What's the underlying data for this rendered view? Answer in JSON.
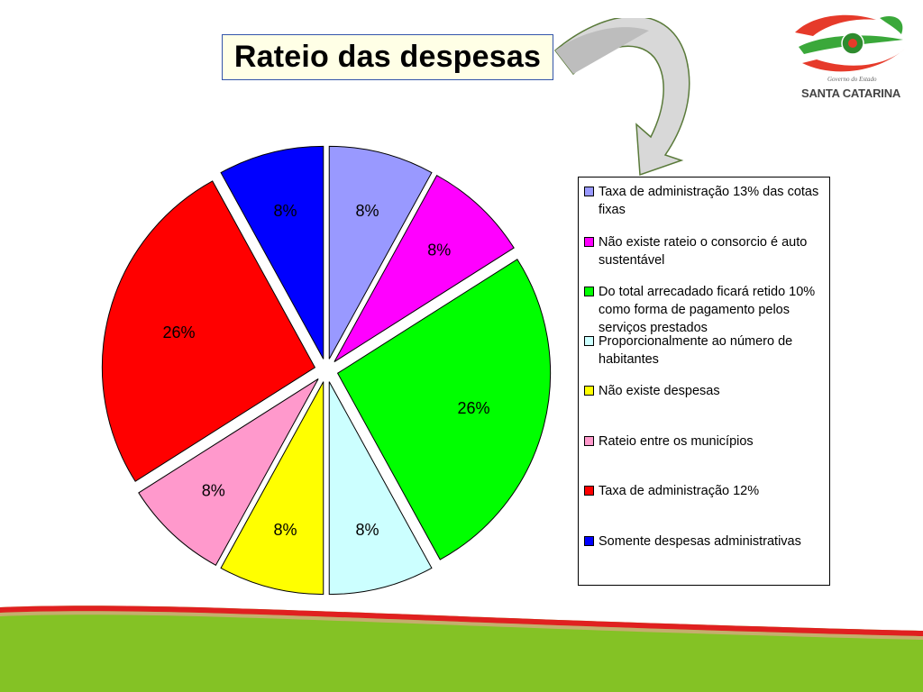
{
  "title": "Rateio das despesas",
  "logo": {
    "small_text": "Governo do Estado",
    "name": "SANTA CATARINA"
  },
  "chart_data": {
    "type": "pie",
    "title": "Rateio das despesas",
    "legend_position": "right",
    "slices": [
      {
        "label": "Taxa de administração 13% das cotas fixas",
        "value": 8,
        "display": "8%",
        "color": "#9999ff"
      },
      {
        "label": "Não existe rateio o consorcio  é auto sustentável",
        "value": 8,
        "display": "8%",
        "color": "#ff00ff"
      },
      {
        "label": "Do total arrecadado ficará retido 10% como forma de pagamento pelos serviços prestados",
        "value": 26,
        "display": "26%",
        "color": "#00ff00"
      },
      {
        "label": "Proporcionalmente ao número de habitantes",
        "value": 8,
        "display": "8%",
        "color": "#ccffff"
      },
      {
        "label": "Não existe despesas",
        "value": 8,
        "display": "8%",
        "color": "#ffff00"
      },
      {
        "label": "Rateio entre os municípios",
        "value": 8,
        "display": "8%",
        "color": "#ff99cc"
      },
      {
        "label": "Taxa de administração 12%",
        "value": 26,
        "display": "26%",
        "color": "#ff0000"
      },
      {
        "label": "Somente despesas administrativas",
        "value": 8,
        "display": "8%",
        "color": "#0000ff"
      }
    ]
  }
}
